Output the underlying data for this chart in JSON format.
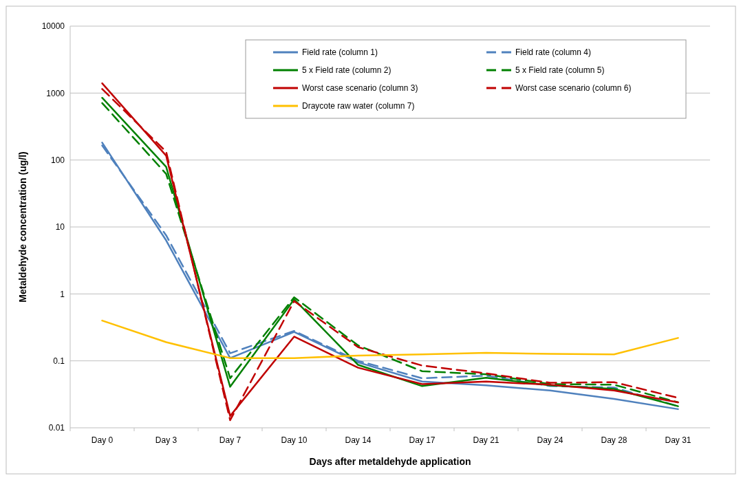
{
  "chart_data": {
    "type": "line",
    "xlabel": "Days after metaldehyde application",
    "ylabel": "Metaldehyde concentration (ug/l)",
    "categories": [
      "Day 0",
      "Day 3",
      "Day 7",
      "Day 10",
      "Day 14",
      "Day 17",
      "Day 21",
      "Day 24",
      "Day 28",
      "Day 31"
    ],
    "log": true,
    "ylim": [
      0.01,
      10000
    ],
    "yticks": [
      0.01,
      0.1,
      1,
      10,
      100,
      1000,
      10000
    ],
    "grid": "y",
    "legend": "top right",
    "marker": "none",
    "series": [
      {
        "name": "Field rate (column 1)",
        "color": "#4f81bd",
        "line_style": "solid",
        "values": [
          182,
          6.3,
          0.11,
          0.27,
          0.095,
          0.049,
          0.043,
          0.036,
          0.027,
          0.019
        ]
      },
      {
        "name": "Field rate (column 4)",
        "color": "#4f81bd",
        "line_style": "dashed",
        "values": [
          165,
          7.5,
          0.13,
          0.28,
          0.1,
          0.055,
          0.06,
          0.042,
          0.04,
          0.021
        ]
      },
      {
        "name": "5 x Field rate (column 2)",
        "color": "#008000",
        "line_style": "solid",
        "values": [
          850,
          79,
          0.041,
          0.83,
          0.087,
          0.042,
          0.056,
          0.043,
          0.038,
          0.021
        ]
      },
      {
        "name": "5 x Field rate (column 5)",
        "color": "#008000",
        "line_style": "dashed",
        "values": [
          710,
          62,
          0.055,
          0.89,
          0.17,
          0.07,
          0.063,
          0.045,
          0.044,
          0.024
        ]
      },
      {
        "name": "Worst case scenario (column 3)",
        "color": "#c00000",
        "line_style": "solid",
        "values": [
          1400,
          116,
          0.015,
          0.23,
          0.079,
          0.045,
          0.049,
          0.044,
          0.036,
          0.024
        ]
      },
      {
        "name": "Worst case scenario (column 6)",
        "color": "#c00000",
        "line_style": "dashed",
        "values": [
          1150,
          133,
          0.013,
          0.78,
          0.16,
          0.085,
          0.065,
          0.047,
          0.048,
          0.028
        ]
      },
      {
        "name": "Draycote raw water (column 7)",
        "color": "#ffc000",
        "line_style": "solid",
        "values": [
          0.4,
          0.19,
          0.11,
          0.11,
          0.12,
          0.125,
          0.132,
          0.127,
          0.125,
          0.22
        ]
      }
    ]
  }
}
